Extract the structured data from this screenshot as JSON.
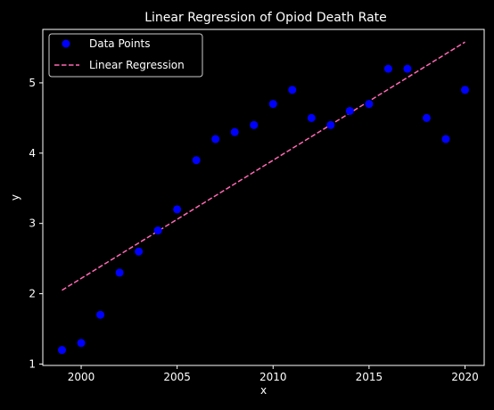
{
  "chart_data": {
    "type": "scatter",
    "title": "Linear Regression of Opiod Death Rate",
    "xlabel": "x",
    "ylabel": "y",
    "xlim": [
      1998.0,
      2021.0
    ],
    "ylim": [
      0.98,
      5.76
    ],
    "xticks": [
      2000,
      2005,
      2010,
      2015,
      2020
    ],
    "yticks": [
      1,
      2,
      3,
      4,
      5
    ],
    "grid": false,
    "legend_position": "upper-left",
    "series": [
      {
        "name": "Data Points",
        "kind": "scatter",
        "color": "#0000ff",
        "x": [
          1999,
          2000,
          2001,
          2002,
          2003,
          2004,
          2005,
          2006,
          2007,
          2008,
          2009,
          2010,
          2011,
          2012,
          2013,
          2014,
          2015,
          2016,
          2017,
          2018,
          2019,
          2020
        ],
        "y": [
          1.2,
          1.3,
          1.7,
          2.3,
          2.6,
          2.9,
          3.2,
          3.9,
          4.2,
          4.3,
          4.4,
          4.7,
          4.9,
          4.5,
          4.4,
          4.6,
          4.7,
          5.2,
          5.2,
          4.5,
          4.2,
          4.9
        ]
      },
      {
        "name": "Linear Regression",
        "kind": "line",
        "style": "dashed",
        "color": "#ff69b4",
        "x": [
          1999,
          2020
        ],
        "y": [
          2.05,
          5.58
        ]
      }
    ]
  }
}
